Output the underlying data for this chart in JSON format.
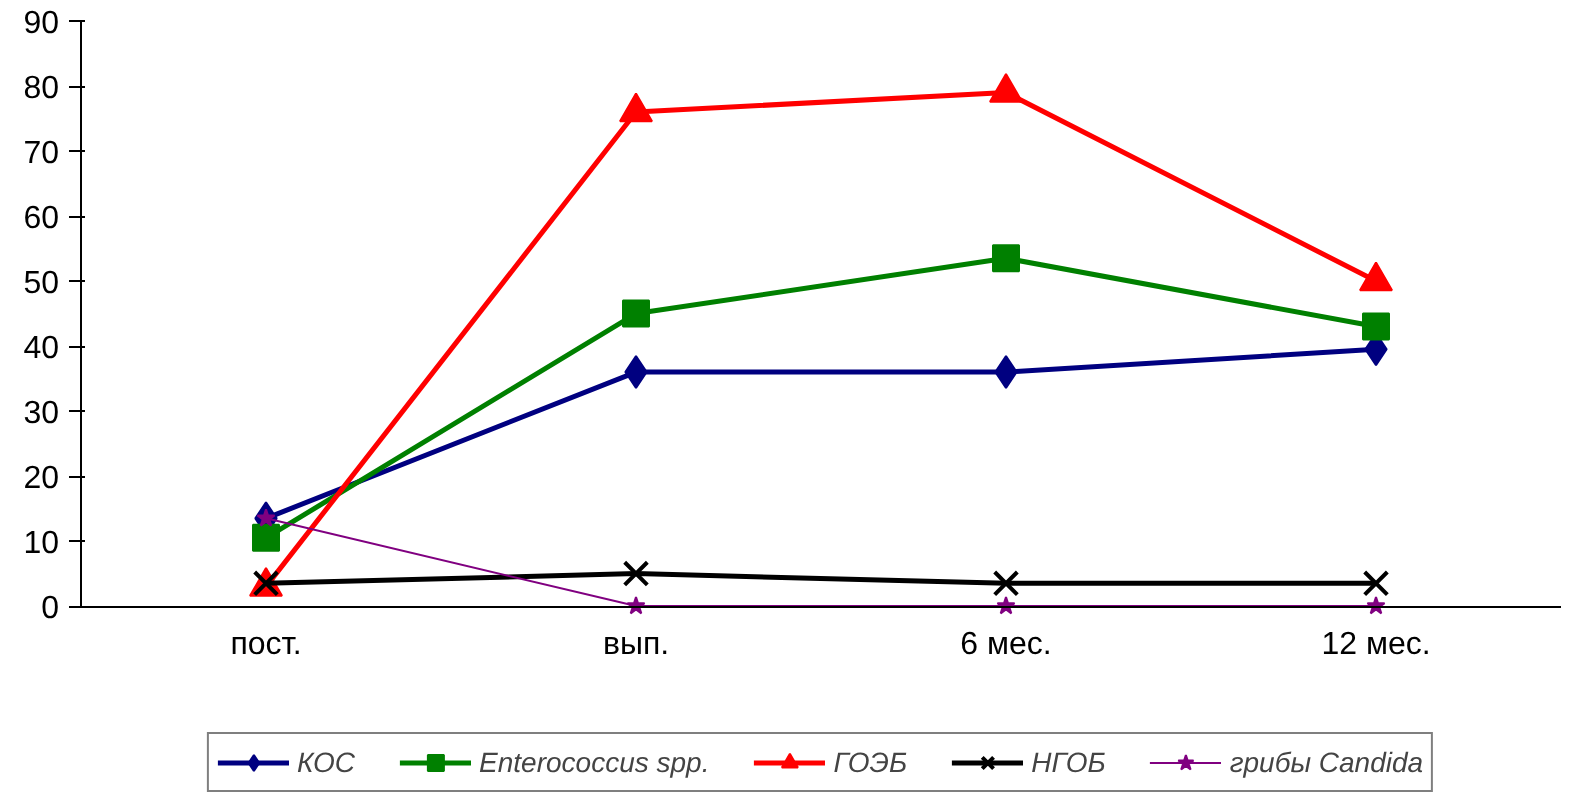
{
  "chart_data": {
    "type": "line",
    "categories": [
      "пост.",
      "вып.",
      "6 мес.",
      "12 мес."
    ],
    "ylim": [
      0,
      90
    ],
    "yticks": [
      0,
      10,
      20,
      30,
      40,
      50,
      60,
      70,
      80,
      90
    ],
    "grid": false,
    "legend": "bottom",
    "line_style": "solid",
    "series": [
      {
        "name": "КОС",
        "color": "#000080",
        "marker": "diamond",
        "values": [
          13.5,
          36,
          36,
          39.5
        ]
      },
      {
        "name": "Enterococcus spp.",
        "color": "#008000",
        "marker": "square",
        "values": [
          10.5,
          45,
          53.5,
          43
        ]
      },
      {
        "name": "ГОЭБ",
        "color": "#ff0000",
        "marker": "triangle",
        "values": [
          3,
          76,
          79,
          50
        ]
      },
      {
        "name": "НГОБ",
        "color": "#000000",
        "marker": "cross",
        "values": [
          3.5,
          5,
          3.5,
          3.5
        ]
      },
      {
        "name": "грибы Candida",
        "color": "#800080",
        "marker": "star",
        "values": [
          13.5,
          0,
          0,
          0
        ]
      }
    ]
  }
}
